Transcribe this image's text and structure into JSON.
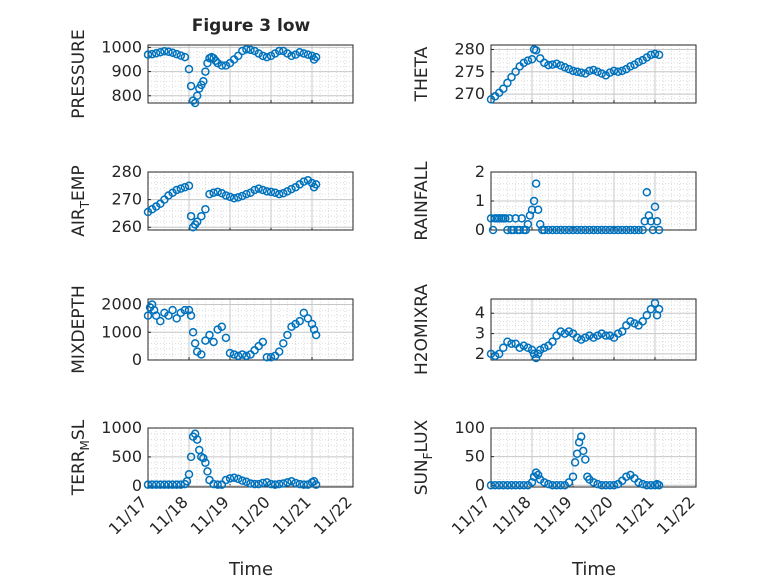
{
  "figure": {
    "title": "Figure 3 low",
    "xlabel": "Time",
    "x_tick_labels": [
      "11/17",
      "11/18",
      "11/19",
      "11/20",
      "11/21",
      "11/22"
    ],
    "marker_color": "#0072BD"
  },
  "chart_data": [
    {
      "type": "scatter",
      "ylabel": "PRESSURE",
      "ylim": [
        770,
        1010
      ],
      "yticks": [
        800,
        900,
        1000
      ],
      "xlim": [
        0,
        5
      ],
      "grid": true,
      "x": [
        0.0,
        0.1,
        0.2,
        0.3,
        0.4,
        0.5,
        0.6,
        0.7,
        0.8,
        0.9,
        1.0,
        1.05,
        1.1,
        1.15,
        1.2,
        1.25,
        1.3,
        1.35,
        1.4,
        1.45,
        1.5,
        1.55,
        1.6,
        1.65,
        1.7,
        1.8,
        1.9,
        2.0,
        2.1,
        2.2,
        2.3,
        2.4,
        2.5,
        2.6,
        2.7,
        2.8,
        2.9,
        3.0,
        3.1,
        3.2,
        3.3,
        3.4,
        3.5,
        3.6,
        3.7,
        3.8,
        3.9,
        4.0,
        4.05,
        4.1
      ],
      "y": [
        970,
        972,
        976,
        980,
        984,
        982,
        978,
        972,
        966,
        960,
        910,
        840,
        780,
        770,
        800,
        830,
        845,
        860,
        900,
        935,
        955,
        960,
        955,
        945,
        935,
        925,
        925,
        935,
        950,
        965,
        985,
        992,
        990,
        985,
        975,
        965,
        960,
        965,
        975,
        985,
        985,
        975,
        965,
        970,
        980,
        975,
        970,
        965,
        950,
        960
      ]
    },
    {
      "type": "scatter",
      "ylabel": "THETA",
      "ylim": [
        268,
        281
      ],
      "yticks": [
        270,
        275,
        280
      ],
      "xlim": [
        0,
        5
      ],
      "grid": true,
      "x": [
        0.0,
        0.1,
        0.2,
        0.3,
        0.4,
        0.5,
        0.6,
        0.7,
        0.8,
        0.9,
        1.0,
        1.05,
        1.1,
        1.2,
        1.3,
        1.4,
        1.5,
        1.6,
        1.7,
        1.8,
        1.9,
        2.0,
        2.1,
        2.2,
        2.3,
        2.4,
        2.5,
        2.6,
        2.7,
        2.8,
        2.9,
        3.0,
        3.1,
        3.2,
        3.3,
        3.4,
        3.5,
        3.6,
        3.7,
        3.8,
        3.9,
        4.0,
        4.1
      ],
      "y": [
        268.8,
        269.5,
        270.3,
        271.2,
        272.5,
        273.8,
        275.0,
        276.2,
        277.0,
        277.5,
        277.8,
        280.0,
        279.8,
        278.0,
        277.0,
        276.5,
        276.6,
        276.8,
        276.4,
        276.0,
        275.6,
        275.2,
        275.0,
        274.8,
        274.6,
        275.2,
        275.4,
        275.0,
        274.6,
        274.2,
        274.8,
        275.2,
        275.0,
        275.2,
        275.6,
        276.2,
        276.6,
        277.2,
        277.6,
        278.2,
        278.8,
        279.0,
        278.8
      ]
    },
    {
      "type": "scatter",
      "ylabel": "AIR_TEMP",
      "ylim": [
        259,
        280
      ],
      "yticks": [
        260,
        270,
        280
      ],
      "xlim": [
        0,
        5
      ],
      "grid": true,
      "x": [
        0.0,
        0.1,
        0.2,
        0.3,
        0.4,
        0.5,
        0.6,
        0.7,
        0.8,
        0.9,
        1.0,
        1.05,
        1.1,
        1.15,
        1.2,
        1.3,
        1.4,
        1.5,
        1.6,
        1.7,
        1.8,
        1.9,
        2.0,
        2.1,
        2.2,
        2.3,
        2.4,
        2.5,
        2.6,
        2.7,
        2.8,
        2.9,
        3.0,
        3.1,
        3.2,
        3.3,
        3.4,
        3.5,
        3.6,
        3.7,
        3.8,
        3.9,
        4.0,
        4.05,
        4.1
      ],
      "y": [
        265.5,
        266.5,
        267.5,
        268.5,
        270.0,
        271.5,
        272.5,
        273.5,
        274.0,
        274.5,
        275.0,
        264.0,
        260.0,
        261.0,
        262.0,
        264.0,
        266.5,
        272.0,
        272.5,
        272.8,
        272.3,
        271.5,
        271.0,
        270.5,
        270.8,
        271.3,
        272.0,
        272.5,
        273.5,
        274.0,
        273.5,
        273.0,
        272.8,
        272.5,
        272.0,
        272.3,
        273.0,
        273.8,
        274.5,
        275.5,
        276.5,
        277.0,
        276.0,
        274.5,
        275.5
      ]
    },
    {
      "type": "scatter",
      "ylabel": "RAINFALL",
      "ylim": [
        0,
        2
      ],
      "yticks": [
        0,
        1,
        2
      ],
      "xlim": [
        0,
        5
      ],
      "grid": true,
      "x": [
        0.0,
        0.05,
        0.1,
        0.15,
        0.2,
        0.25,
        0.3,
        0.35,
        0.4,
        0.45,
        0.5,
        0.55,
        0.6,
        0.65,
        0.7,
        0.75,
        0.8,
        0.85,
        0.9,
        0.95,
        1.0,
        1.05,
        1.1,
        1.15,
        1.2,
        1.25,
        1.3,
        1.4,
        1.5,
        1.6,
        1.7,
        1.8,
        1.9,
        2.0,
        2.1,
        2.2,
        2.3,
        2.4,
        2.5,
        2.6,
        2.7,
        2.8,
        2.9,
        3.0,
        3.1,
        3.2,
        3.3,
        3.4,
        3.5,
        3.6,
        3.7,
        3.75,
        3.8,
        3.85,
        3.9,
        3.95,
        4.0,
        4.05,
        4.1
      ],
      "y": [
        0.4,
        0.0,
        0.4,
        0.4,
        0.4,
        0.4,
        0.4,
        0.4,
        0.0,
        0.4,
        0.0,
        0.0,
        0.4,
        0.0,
        0.0,
        0.4,
        0.0,
        0.0,
        0.2,
        0.5,
        0.7,
        1.0,
        1.6,
        0.7,
        0.2,
        0.0,
        0.0,
        0.0,
        0.0,
        0.0,
        0.0,
        0.0,
        0.0,
        0.0,
        0.0,
        0.0,
        0.0,
        0.0,
        0.0,
        0.0,
        0.0,
        0.0,
        0.0,
        0.0,
        0.0,
        0.0,
        0.0,
        0.0,
        0.0,
        0.0,
        0.0,
        0.3,
        1.3,
        0.5,
        0.3,
        0.0,
        0.8,
        0.3,
        0.0
      ]
    },
    {
      "type": "scatter",
      "ylabel": "MIXDEPTH",
      "ylim": [
        0,
        2200
      ],
      "yticks": [
        0,
        1000,
        2000
      ],
      "xlim": [
        0,
        5
      ],
      "grid": true,
      "x": [
        0.0,
        0.05,
        0.1,
        0.15,
        0.2,
        0.3,
        0.4,
        0.5,
        0.6,
        0.7,
        0.8,
        0.9,
        1.0,
        1.05,
        1.1,
        1.15,
        1.2,
        1.3,
        1.4,
        1.5,
        1.6,
        1.7,
        1.8,
        1.9,
        2.0,
        2.1,
        2.2,
        2.3,
        2.4,
        2.5,
        2.6,
        2.7,
        2.8,
        2.9,
        3.0,
        3.1,
        3.2,
        3.3,
        3.4,
        3.5,
        3.6,
        3.7,
        3.8,
        3.9,
        4.0,
        4.05,
        4.1
      ],
      "y": [
        1600,
        1900,
        2000,
        1800,
        1600,
        1400,
        1700,
        1600,
        1800,
        1500,
        1700,
        1800,
        1800,
        1600,
        1000,
        600,
        300,
        200,
        700,
        900,
        650,
        1100,
        1200,
        800,
        250,
        200,
        150,
        200,
        150,
        200,
        350,
        500,
        650,
        100,
        100,
        150,
        300,
        600,
        900,
        1200,
        1300,
        1400,
        1700,
        1500,
        1300,
        1100,
        900
      ]
    },
    {
      "type": "scatter",
      "ylabel": "H2OMIXRA",
      "ylim": [
        1.7,
        4.7
      ],
      "yticks": [
        2,
        3,
        4
      ],
      "xlim": [
        0,
        5
      ],
      "grid": true,
      "x": [
        0.0,
        0.1,
        0.2,
        0.3,
        0.4,
        0.5,
        0.6,
        0.7,
        0.8,
        0.9,
        1.0,
        1.05,
        1.1,
        1.15,
        1.2,
        1.3,
        1.4,
        1.5,
        1.6,
        1.7,
        1.8,
        1.9,
        2.0,
        2.1,
        2.2,
        2.3,
        2.4,
        2.5,
        2.6,
        2.7,
        2.8,
        2.9,
        3.0,
        3.1,
        3.2,
        3.3,
        3.4,
        3.5,
        3.6,
        3.7,
        3.8,
        3.9,
        4.0,
        4.05,
        4.1
      ],
      "y": [
        2.0,
        1.9,
        2.0,
        2.3,
        2.6,
        2.5,
        2.5,
        2.3,
        2.4,
        2.3,
        2.2,
        2.0,
        1.8,
        2.0,
        2.2,
        2.3,
        2.4,
        2.6,
        2.9,
        3.1,
        3.0,
        3.1,
        3.0,
        2.8,
        2.7,
        2.8,
        2.9,
        2.8,
        2.9,
        3.0,
        2.9,
        2.9,
        2.8,
        3.0,
        3.1,
        3.4,
        3.6,
        3.5,
        3.4,
        3.6,
        3.9,
        4.2,
        4.5,
        3.9,
        4.2
      ]
    },
    {
      "type": "scatter",
      "ylabel": "TERR_MSL",
      "ylim": [
        -20,
        1000
      ],
      "yticks": [
        0,
        500,
        1000
      ],
      "xlim": [
        0,
        5
      ],
      "grid": true,
      "x": [
        0.0,
        0.1,
        0.2,
        0.3,
        0.4,
        0.5,
        0.6,
        0.7,
        0.8,
        0.9,
        0.95,
        1.0,
        1.05,
        1.1,
        1.15,
        1.2,
        1.25,
        1.3,
        1.35,
        1.4,
        1.45,
        1.5,
        1.6,
        1.7,
        1.8,
        1.9,
        2.0,
        2.1,
        2.2,
        2.3,
        2.4,
        2.5,
        2.6,
        2.7,
        2.8,
        2.9,
        3.0,
        3.1,
        3.2,
        3.3,
        3.4,
        3.5,
        3.6,
        3.7,
        3.8,
        3.9,
        4.0,
        4.05,
        4.1
      ],
      "y": [
        20,
        20,
        20,
        20,
        20,
        20,
        20,
        20,
        20,
        30,
        80,
        200,
        500,
        850,
        900,
        800,
        620,
        500,
        480,
        400,
        250,
        100,
        30,
        20,
        20,
        100,
        130,
        140,
        120,
        90,
        70,
        40,
        30,
        30,
        50,
        60,
        30,
        20,
        30,
        40,
        60,
        80,
        50,
        30,
        20,
        20,
        60,
        80,
        20
      ]
    },
    {
      "type": "scatter",
      "ylabel": "SUN_FLUX",
      "ylim": [
        -3,
        100
      ],
      "yticks": [
        0,
        50,
        100
      ],
      "xlim": [
        0,
        5
      ],
      "grid": true,
      "x": [
        0.0,
        0.1,
        0.2,
        0.3,
        0.4,
        0.5,
        0.6,
        0.7,
        0.8,
        0.9,
        1.0,
        1.05,
        1.1,
        1.15,
        1.2,
        1.3,
        1.4,
        1.5,
        1.6,
        1.7,
        1.8,
        1.9,
        2.0,
        2.05,
        2.1,
        2.15,
        2.2,
        2.25,
        2.3,
        2.35,
        2.4,
        2.5,
        2.6,
        2.7,
        2.8,
        2.9,
        3.0,
        3.1,
        3.2,
        3.3,
        3.4,
        3.5,
        3.6,
        3.7,
        3.8,
        3.9,
        4.0,
        4.05,
        4.1
      ],
      "y": [
        0,
        0,
        0,
        0,
        0,
        0,
        0,
        0,
        0,
        0,
        5,
        15,
        22,
        18,
        10,
        5,
        2,
        0,
        0,
        0,
        0,
        5,
        15,
        40,
        55,
        75,
        85,
        60,
        45,
        15,
        10,
        5,
        2,
        0,
        0,
        0,
        0,
        2,
        8,
        15,
        18,
        12,
        5,
        2,
        0,
        0,
        0,
        2,
        0
      ]
    }
  ]
}
